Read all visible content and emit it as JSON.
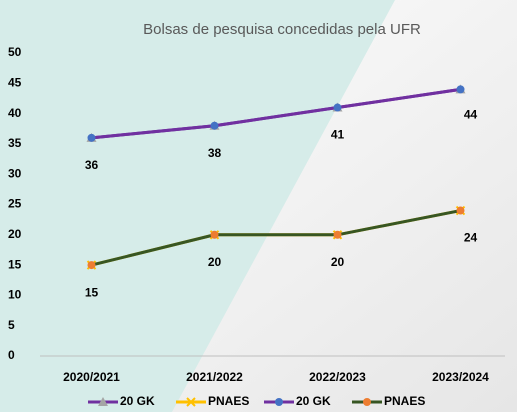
{
  "chart_data": {
    "type": "line",
    "title": "Bolsas de pesquisa concedidas pela UFR",
    "categories": [
      "2020/2021",
      "2021/2022",
      "2022/2023",
      "2023/2024"
    ],
    "series": [
      {
        "name": "20 GK",
        "color": "#7030a0",
        "marker": "triangle",
        "marker_color": "#a5a5a5",
        "values": [
          36,
          38,
          41,
          44
        ]
      },
      {
        "name": "PNAES",
        "color": "#ffc000",
        "marker": "x",
        "marker_color": "#ffc000",
        "values": [
          15,
          20,
          20,
          24
        ]
      },
      {
        "name": "20 GK",
        "color": "#7030a0",
        "marker": "circle",
        "marker_color": "#4472c4",
        "values": [
          36,
          38,
          41,
          44
        ]
      },
      {
        "name": "PNAES",
        "color": "#375623",
        "marker": "circle",
        "marker_color": "#ed7d31",
        "values": [
          15,
          20,
          20,
          24
        ]
      }
    ],
    "ylim": [
      0,
      50
    ],
    "yticks": [
      0,
      5,
      10,
      15,
      20,
      25,
      30,
      35,
      40,
      45,
      50
    ],
    "legend": "bottom"
  }
}
